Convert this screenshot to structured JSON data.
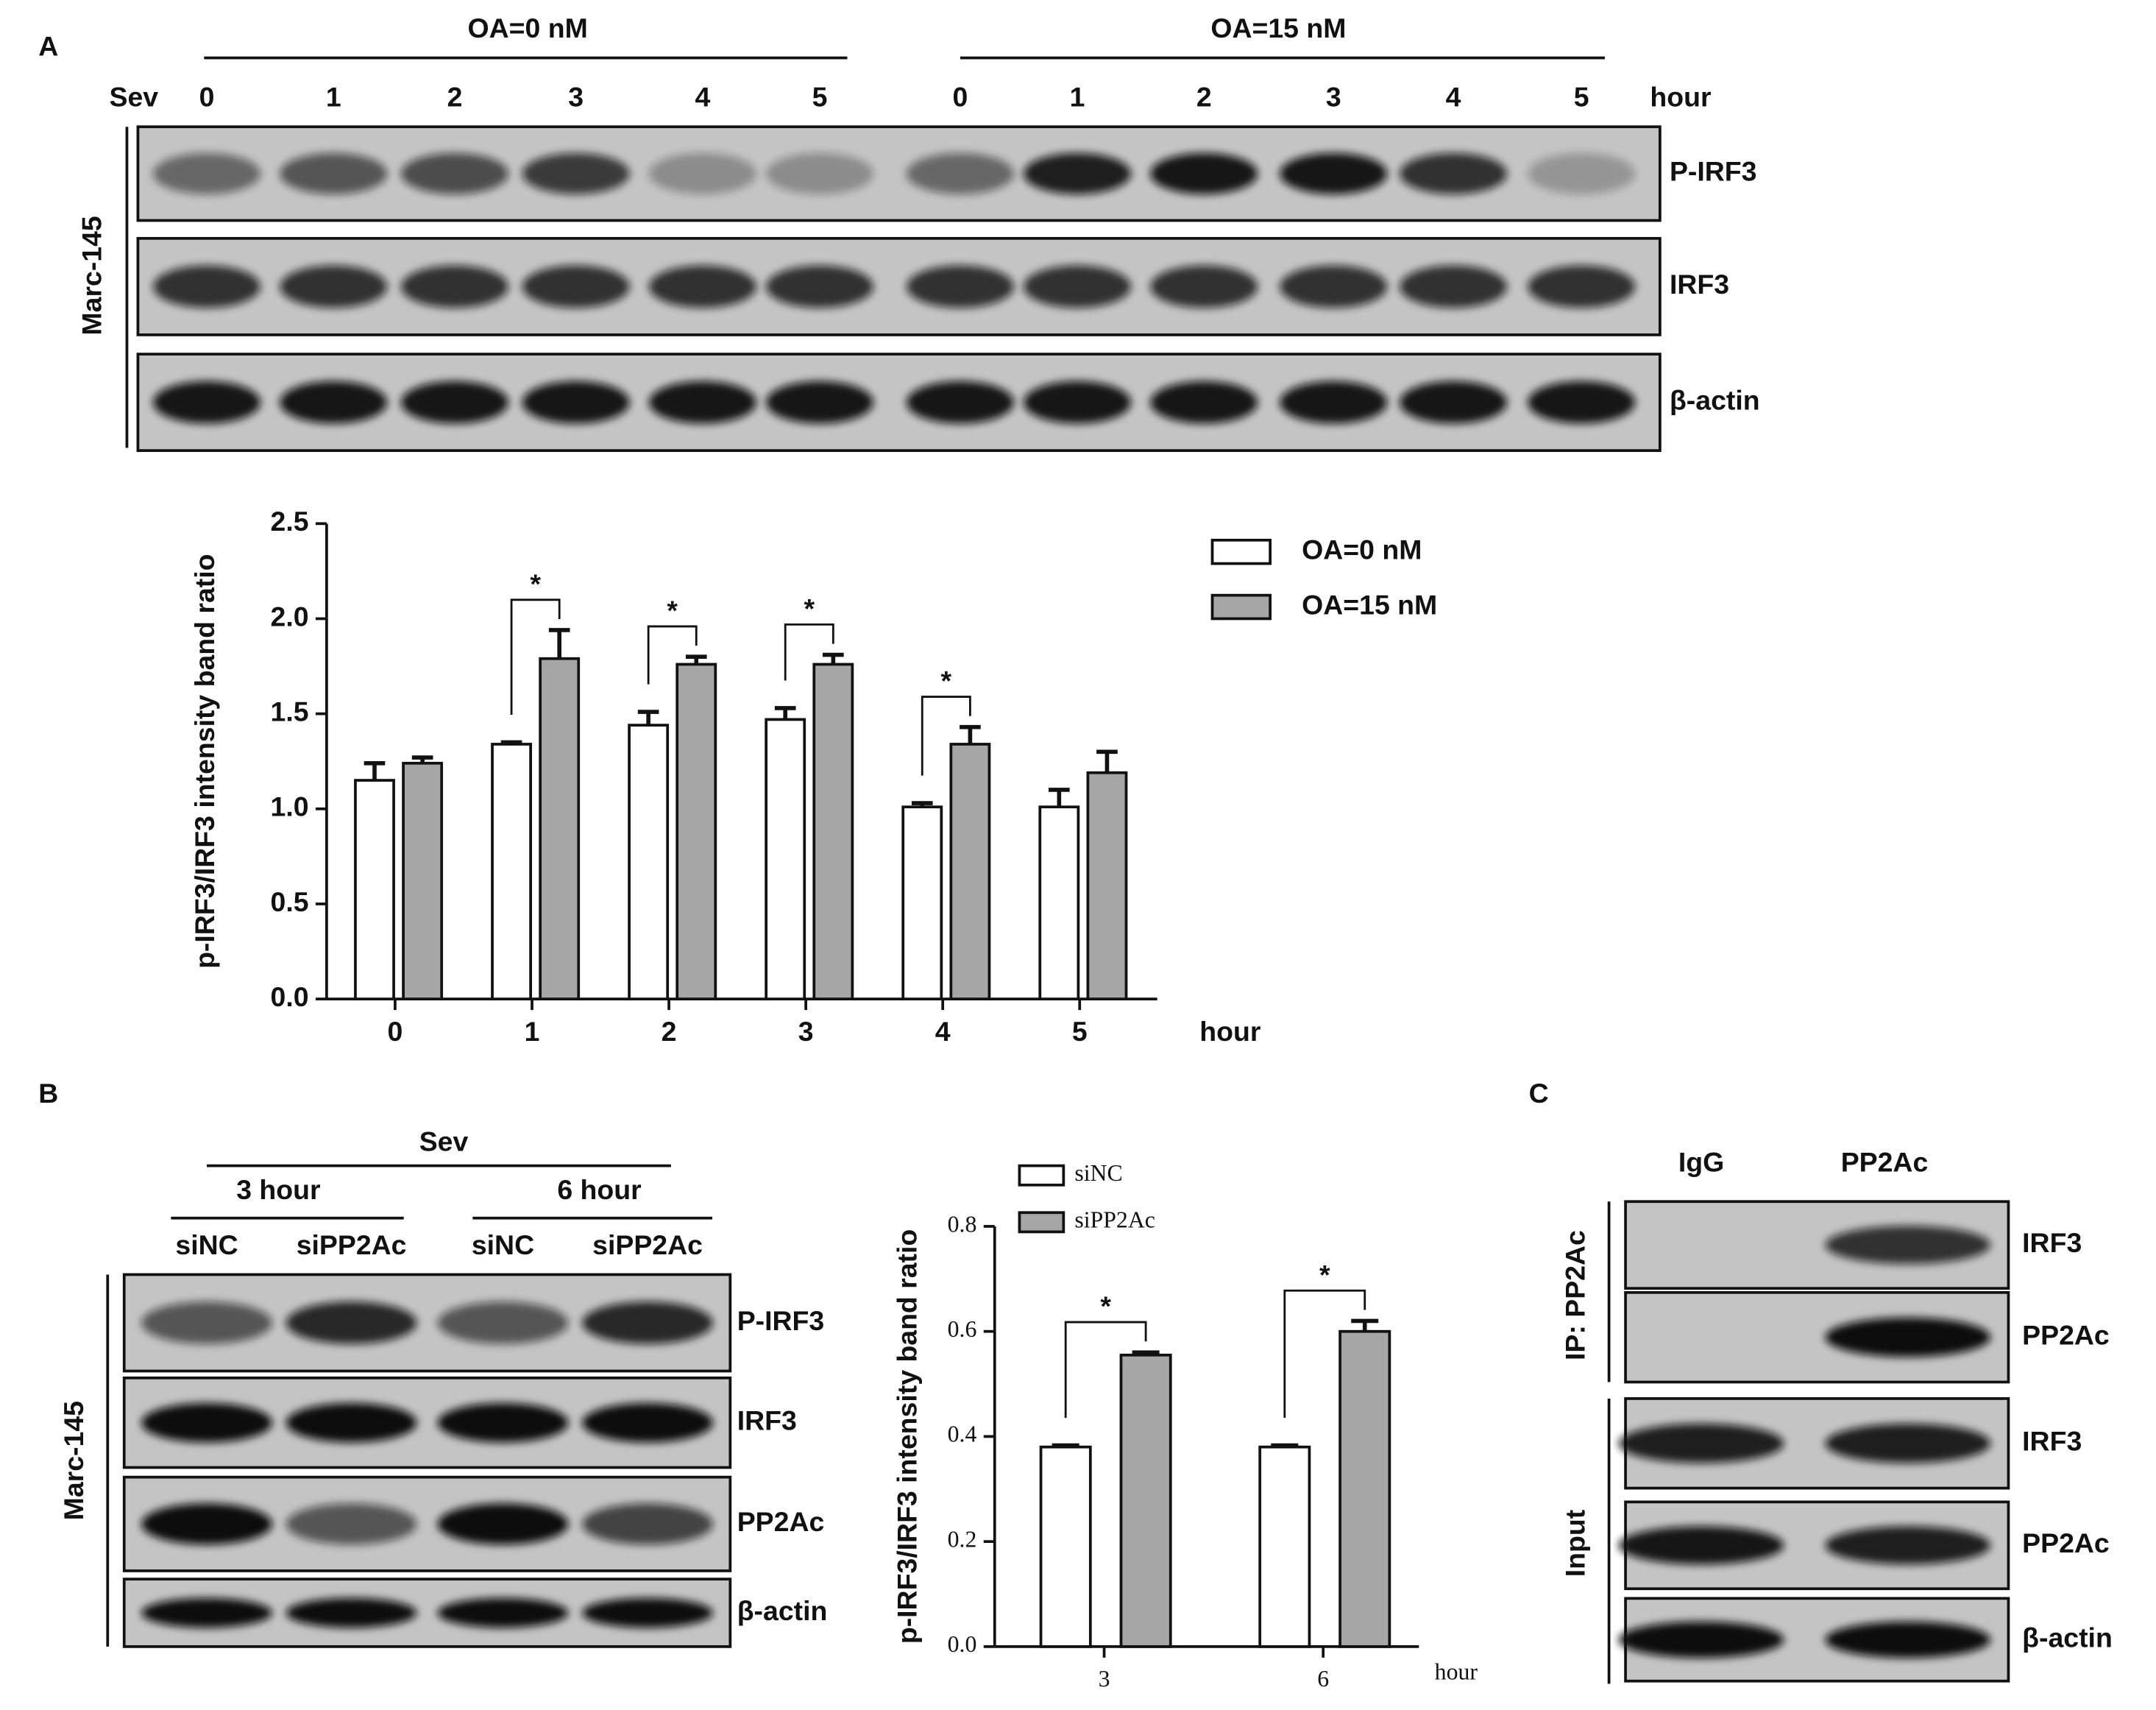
{
  "panel_labels": [
    "A",
    "B",
    "C"
  ],
  "blot_a": {
    "treatment": "Sev",
    "groups": [
      "OA=0 nM",
      "OA=15 nM"
    ],
    "lanes": [
      "0",
      "1",
      "2",
      "3",
      "4",
      "5",
      "0",
      "1",
      "2",
      "3",
      "4",
      "5"
    ],
    "unit": "hour",
    "rows": [
      "P-IRF3",
      "IRF3",
      "β-actin"
    ],
    "cell_line": "Marc-145"
  },
  "blot_b": {
    "treatment": "Sev",
    "times": [
      "3 hour",
      "6 hour"
    ],
    "lanes": [
      "siNC",
      "siPP2Ac",
      "siNC",
      "siPP2Ac"
    ],
    "rows": [
      "P-IRF3",
      "IRF3",
      "PP2Ac",
      "β-actin"
    ],
    "cell_line": "Marc-145"
  },
  "blot_c": {
    "lanes": [
      "IgG",
      "PP2Ac"
    ],
    "sections": [
      {
        "label": "IP: PP2Ac",
        "rows": [
          "IRF3",
          "PP2Ac"
        ]
      },
      {
        "label": "Input",
        "rows": [
          "IRF3",
          "PP2Ac",
          "β-actin"
        ]
      }
    ]
  },
  "chart_data": [
    {
      "type": "bar",
      "ylabel": "p-IRF3/IRF3 intensity band ratio",
      "xlabel": "hour",
      "categories": [
        "0",
        "1",
        "2",
        "3",
        "4",
        "5"
      ],
      "series": [
        {
          "name": "OA=0 nM",
          "color": "#ffffff",
          "values": [
            1.15,
            1.34,
            1.44,
            1.47,
            1.01,
            1.01
          ],
          "errors": [
            0.09,
            0.01,
            0.07,
            0.06,
            0.02,
            0.09
          ]
        },
        {
          "name": "OA=15 nM",
          "color": "#a6a6a6",
          "values": [
            1.24,
            1.79,
            1.76,
            1.76,
            1.34,
            1.19
          ],
          "errors": [
            0.03,
            0.15,
            0.04,
            0.05,
            0.09,
            0.11
          ]
        }
      ],
      "significance": [
        null,
        "*",
        "*",
        "*",
        "*",
        null
      ],
      "ylim": [
        0,
        2.5
      ],
      "yticks": [
        {
          "value": 0,
          "label": "0.0"
        },
        0.5,
        {
          "value": 1,
          "label": "1.0"
        },
        1.5,
        {
          "value": 2,
          "label": "2.0"
        },
        2.5
      ]
    },
    {
      "type": "bar",
      "ylabel": "p-IRF3/IRF3 intensity band ratio",
      "xlabel": "hour",
      "categories": [
        "3",
        "6"
      ],
      "series": [
        {
          "name": "siNC",
          "color": "#ffffff",
          "values": [
            0.38,
            0.38
          ],
          "errors": [
            0.003,
            0.003
          ]
        },
        {
          "name": "siPP2Ac",
          "color": "#a6a6a6",
          "values": [
            0.555,
            0.6
          ],
          "errors": [
            0.005,
            0.02
          ]
        }
      ],
      "significance": [
        "*",
        "*"
      ],
      "ylim": [
        0,
        0.8
      ],
      "yticks": [
        {
          "value": 0,
          "label": "0.0"
        },
        0.2,
        0.4,
        0.6,
        0.8
      ]
    }
  ]
}
